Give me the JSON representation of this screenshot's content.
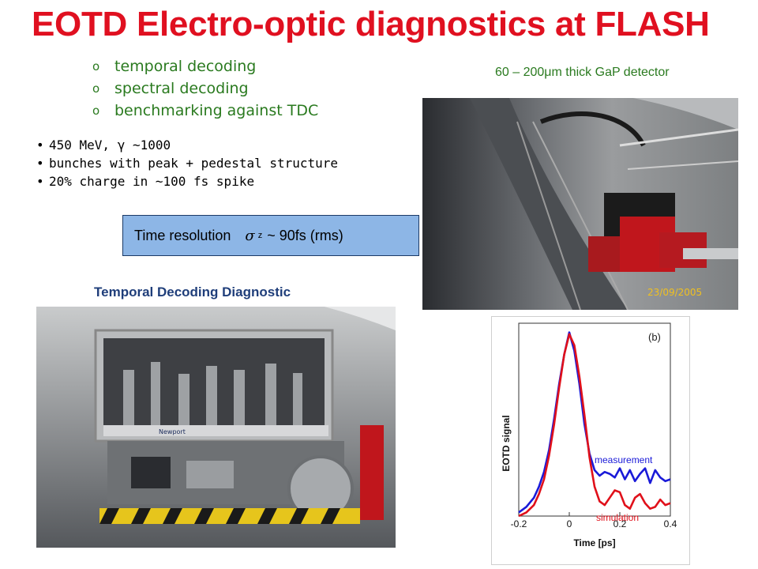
{
  "slide": {
    "title": "EOTD Electro-optic diagnostics at FLASH",
    "sub_items": [
      "temporal decoding",
      "spectral decoding",
      "benchmarking against TDC"
    ],
    "sub_marker": "o",
    "bullets": [
      "450 MeV, γ ~1000",
      "bunches with peak + pedestal structure",
      "20% charge in ~100 fs spike"
    ],
    "bullet_marker": "•",
    "time_box": {
      "prefix": "Time resolution",
      "sigma": "σ",
      "subscript": "z",
      "suffix": "~ 90fs (rms)"
    },
    "caption_left": "Temporal Decoding Diagnostic",
    "caption_right": "60 – 200μm thick GaP detector",
    "photo_right_stamp": "23/09/2005",
    "photo_left_labels": [
      "Newport"
    ],
    "colors": {
      "title": "#e01020",
      "green": "#2a7a1f",
      "caption_blue": "#1f3e7a",
      "box": "#8db6e6"
    }
  },
  "chart_data": {
    "type": "line",
    "panel_label": "(b)",
    "xlabel": "Time [ps]",
    "ylabel": "EOTD signal",
    "xlim": [
      -0.2,
      0.4
    ],
    "ylim": [
      0,
      1.05
    ],
    "x_ticks": [
      "-0.2",
      "0",
      "0.2",
      "0.4"
    ],
    "series": [
      {
        "name": "measurement",
        "color": "#1a1ad8",
        "x": [
          -0.2,
          -0.17,
          -0.14,
          -0.12,
          -0.1,
          -0.08,
          -0.06,
          -0.04,
          -0.02,
          0,
          0.02,
          0.04,
          0.06,
          0.08,
          0.1,
          0.12,
          0.14,
          0.16,
          0.18,
          0.2,
          0.22,
          0.24,
          0.26,
          0.28,
          0.3,
          0.32,
          0.34,
          0.36,
          0.38,
          0.4
        ],
        "y": [
          0.02,
          0.05,
          0.1,
          0.16,
          0.24,
          0.36,
          0.53,
          0.72,
          0.88,
          1.0,
          0.9,
          0.72,
          0.5,
          0.34,
          0.25,
          0.22,
          0.24,
          0.23,
          0.21,
          0.26,
          0.2,
          0.25,
          0.19,
          0.23,
          0.26,
          0.18,
          0.25,
          0.21,
          0.19,
          0.2
        ]
      },
      {
        "name": "simulation",
        "color": "#e0101a",
        "x": [
          -0.2,
          -0.17,
          -0.14,
          -0.12,
          -0.1,
          -0.08,
          -0.06,
          -0.04,
          -0.02,
          0,
          0.02,
          0.04,
          0.06,
          0.08,
          0.1,
          0.12,
          0.14,
          0.16,
          0.18,
          0.2,
          0.22,
          0.24,
          0.26,
          0.28,
          0.3,
          0.32,
          0.34,
          0.36,
          0.38,
          0.4
        ],
        "y": [
          0.0,
          0.02,
          0.06,
          0.12,
          0.2,
          0.33,
          0.5,
          0.7,
          0.88,
          0.99,
          0.93,
          0.76,
          0.55,
          0.32,
          0.16,
          0.08,
          0.06,
          0.1,
          0.14,
          0.13,
          0.06,
          0.04,
          0.1,
          0.12,
          0.07,
          0.04,
          0.05,
          0.09,
          0.06,
          0.07
        ]
      }
    ]
  }
}
